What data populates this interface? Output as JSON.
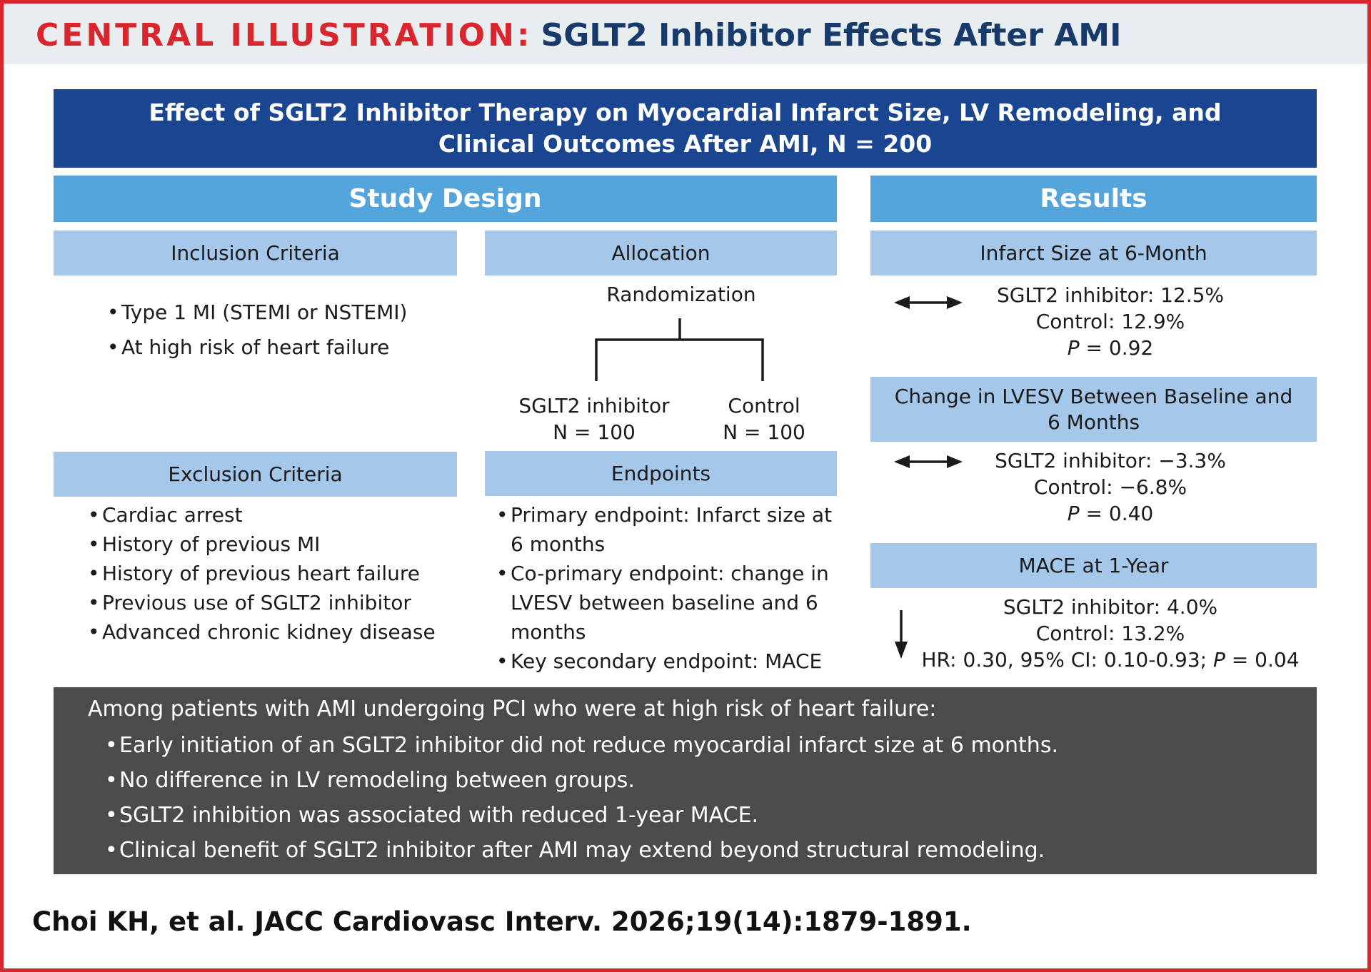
{
  "header": {
    "label": "CENTRAL ILLUSTRATION:",
    "subject": "SGLT2 Inhibitor Effects After AMI"
  },
  "main_title": {
    "line1": "Effect of SGLT2 Inhibitor Therapy on Myocardial Infarct Size, LV Remodeling, and",
    "line2": "Clinical Outcomes After AMI, N = 200"
  },
  "study_design": {
    "title": "Study Design",
    "inclusion": {
      "title": "Inclusion Criteria",
      "items": [
        "Type 1 MI (STEMI or NSTEMI)",
        "At high risk of heart failure"
      ]
    },
    "allocation": {
      "title": "Allocation",
      "randomization": "Randomization",
      "arm_a": {
        "name": "SGLT2 inhibitor",
        "n": "N = 100"
      },
      "arm_b": {
        "name": "Control",
        "n": "N = 100"
      }
    },
    "exclusion": {
      "title": "Exclusion Criteria",
      "items": [
        "Cardiac arrest",
        "History of previous MI",
        "History of previous heart failure",
        "Previous use of SGLT2 inhibitor",
        "Advanced chronic kidney disease"
      ]
    },
    "endpoints": {
      "title": "Endpoints",
      "items": [
        "Primary endpoint: Infarct size at 6 months",
        "Co-primary endpoint: change in LVESV between baseline and 6 months",
        "Key secondary endpoint: MACE"
      ]
    }
  },
  "results": {
    "title": "Results",
    "infarct": {
      "title": "Infarct Size at 6-Month",
      "line1": "SGLT2 inhibitor: 12.5%",
      "line2": "Control: 12.9%",
      "p_label": "P",
      "p_value": " = 0.92",
      "arrow_icon": "double-arrow-icon"
    },
    "lvesv": {
      "title_line1": "Change in LVESV Between Baseline and",
      "title_line2": "6 Months",
      "line1": "SGLT2 inhibitor: −3.3%",
      "line2": "Control: −6.8%",
      "p_label": "P",
      "p_value": " = 0.40",
      "arrow_icon": "double-arrow-icon"
    },
    "mace": {
      "title": "MACE at 1-Year",
      "line1": "SGLT2 inhibitor: 4.0%",
      "line2": "Control: 13.2%",
      "line3_prefix": "HR: 0.30, 95% CI: 0.10-0.93; ",
      "p_label": "P",
      "p_value": " = 0.04",
      "arrow_icon": "down-arrow-icon"
    }
  },
  "summary": {
    "intro": "Among patients with AMI undergoing PCI who were at high risk of heart failure:",
    "items": [
      "Early initiation of an SGLT2 inhibitor did not reduce myocardial infarct size at 6 months.",
      "No difference in LV remodeling between groups.",
      "SGLT2 inhibition was associated with reduced 1-year MACE.",
      "Clinical benefit of SGLT2 inhibitor after AMI may extend beyond structural remodeling."
    ]
  },
  "citation": "Choi KH, et al. JACC Cardiovasc Interv. 2026;19(14):1879-1891.",
  "colors": {
    "frame_red": "#d9262e",
    "header_navy": "#173a6b",
    "title_blue": "#1a4590",
    "section_blue": "#55a5dd",
    "subhead_blue": "#a5c7e9",
    "summary_gray": "#4b4b4d"
  }
}
